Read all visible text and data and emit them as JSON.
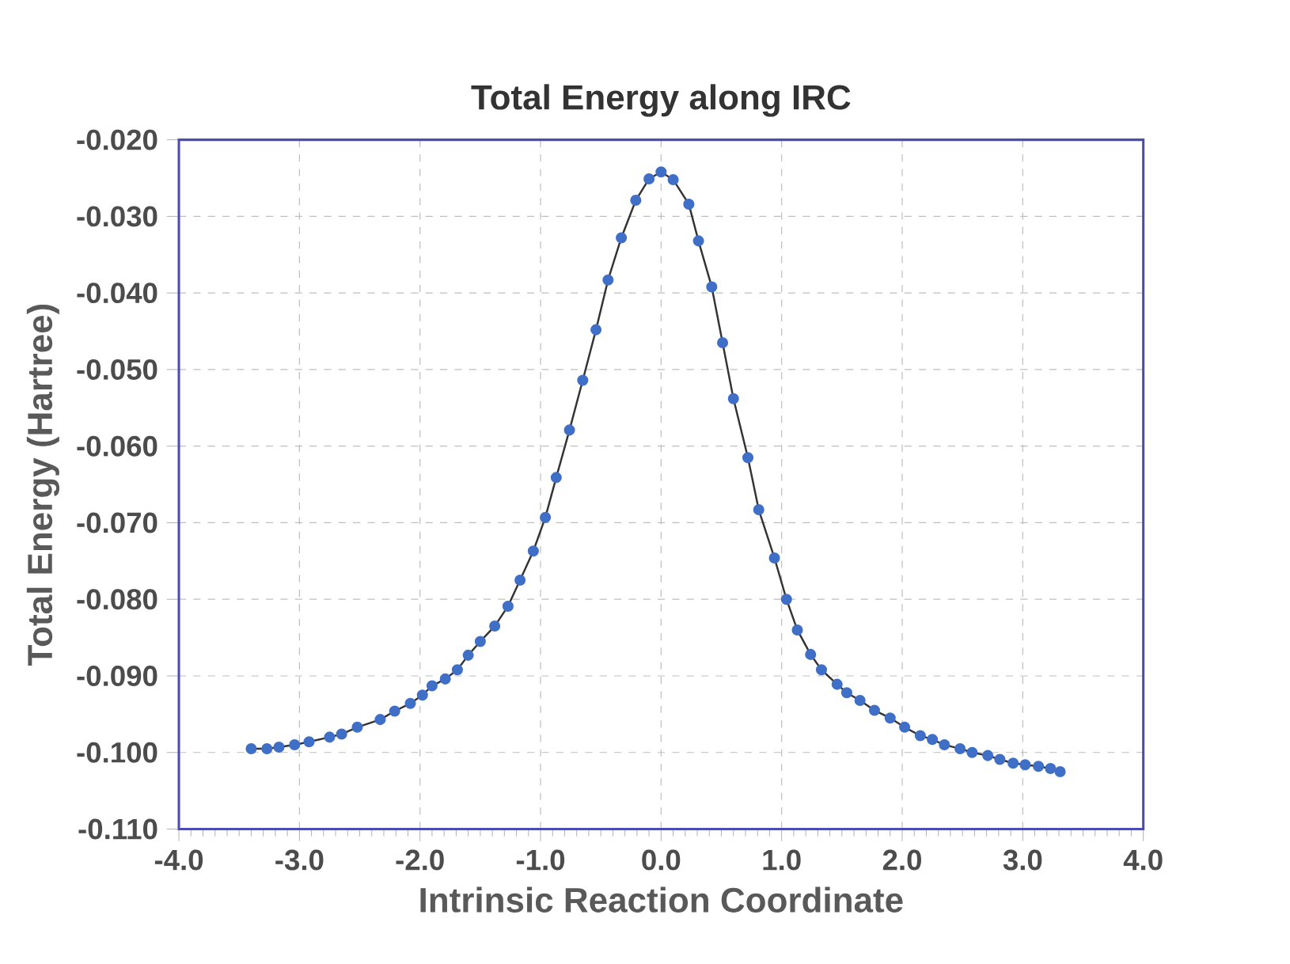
{
  "chart_data": {
    "type": "line",
    "title": "Total Energy along IRC",
    "xlabel": "Intrinsic Reaction Coordinate",
    "ylabel": "Total Energy (Hartree)",
    "xlim": [
      -4.0,
      4.0
    ],
    "xticks": [
      {
        "value": -4,
        "label": "-4.0"
      },
      {
        "value": -3,
        "label": "-3.0"
      },
      {
        "value": -2,
        "label": "-2.0"
      },
      {
        "value": -1,
        "label": "-1.0"
      },
      {
        "value": 0,
        "label": "0.0"
      },
      {
        "value": 1,
        "label": "1.0"
      },
      {
        "value": 2,
        "label": "2.0"
      },
      {
        "value": 3,
        "label": "3.0"
      },
      {
        "value": 4,
        "label": "4.0"
      }
    ],
    "ylim": [
      -0.11,
      -0.02
    ],
    "yticks": [
      {
        "value": -0.02,
        "label": "-0.020"
      },
      {
        "value": -0.03,
        "label": "-0.030"
      },
      {
        "value": -0.04,
        "label": "-0.040"
      },
      {
        "value": -0.05,
        "label": "-0.050"
      },
      {
        "value": -0.06,
        "label": "-0.060"
      },
      {
        "value": -0.07,
        "label": "-0.070"
      },
      {
        "value": -0.08,
        "label": "-0.080"
      },
      {
        "value": -0.09,
        "label": "-0.090"
      },
      {
        "value": -0.1,
        "label": "-0.100"
      },
      {
        "value": -0.11,
        "label": "-0.110"
      }
    ],
    "grid": true,
    "marker": "circle",
    "line_style": "solid",
    "series": [
      {
        "color": "#3f6fc6",
        "x": [
          -3.4,
          -3.27,
          -3.17,
          -3.04,
          -2.92,
          -2.75,
          -2.65,
          -2.52,
          -2.33,
          -2.21,
          -2.08,
          -1.98,
          -1.9,
          -1.79,
          -1.69,
          -1.6,
          -1.5,
          -1.38,
          -1.27,
          -1.17,
          -1.06,
          -0.96,
          -0.87,
          -0.76,
          -0.65,
          -0.54,
          -0.44,
          -0.33,
          -0.21,
          -0.1,
          0.0,
          0.1,
          0.23,
          0.31,
          0.42,
          0.51,
          0.6,
          0.72,
          0.81,
          0.94,
          1.04,
          1.13,
          1.24,
          1.33,
          1.46,
          1.54,
          1.65,
          1.77,
          1.9,
          2.02,
          2.15,
          2.25,
          2.35,
          2.48,
          2.58,
          2.71,
          2.81,
          2.92,
          3.02,
          3.13,
          3.23,
          3.31
        ],
        "values": [
          -0.0995,
          -0.0995,
          -0.0993,
          -0.099,
          -0.0986,
          -0.098,
          -0.0976,
          -0.0967,
          -0.0957,
          -0.0946,
          -0.0936,
          -0.0925,
          -0.0913,
          -0.0904,
          -0.0892,
          -0.0873,
          -0.0855,
          -0.0835,
          -0.0809,
          -0.0775,
          -0.0737,
          -0.0693,
          -0.0641,
          -0.0579,
          -0.0514,
          -0.0448,
          -0.0383,
          -0.0328,
          -0.0279,
          -0.0251,
          -0.0242,
          -0.0252,
          -0.0284,
          -0.0332,
          -0.0392,
          -0.0465,
          -0.0538,
          -0.0615,
          -0.0683,
          -0.0746,
          -0.08,
          -0.084,
          -0.0872,
          -0.0892,
          -0.0911,
          -0.0922,
          -0.0932,
          -0.0945,
          -0.0955,
          -0.0967,
          -0.0978,
          -0.0983,
          -0.099,
          -0.0995,
          -0.1,
          -0.1004,
          -0.1009,
          -0.1014,
          -0.1016,
          -0.1018,
          -0.1021,
          -0.1025
        ]
      }
    ]
  }
}
